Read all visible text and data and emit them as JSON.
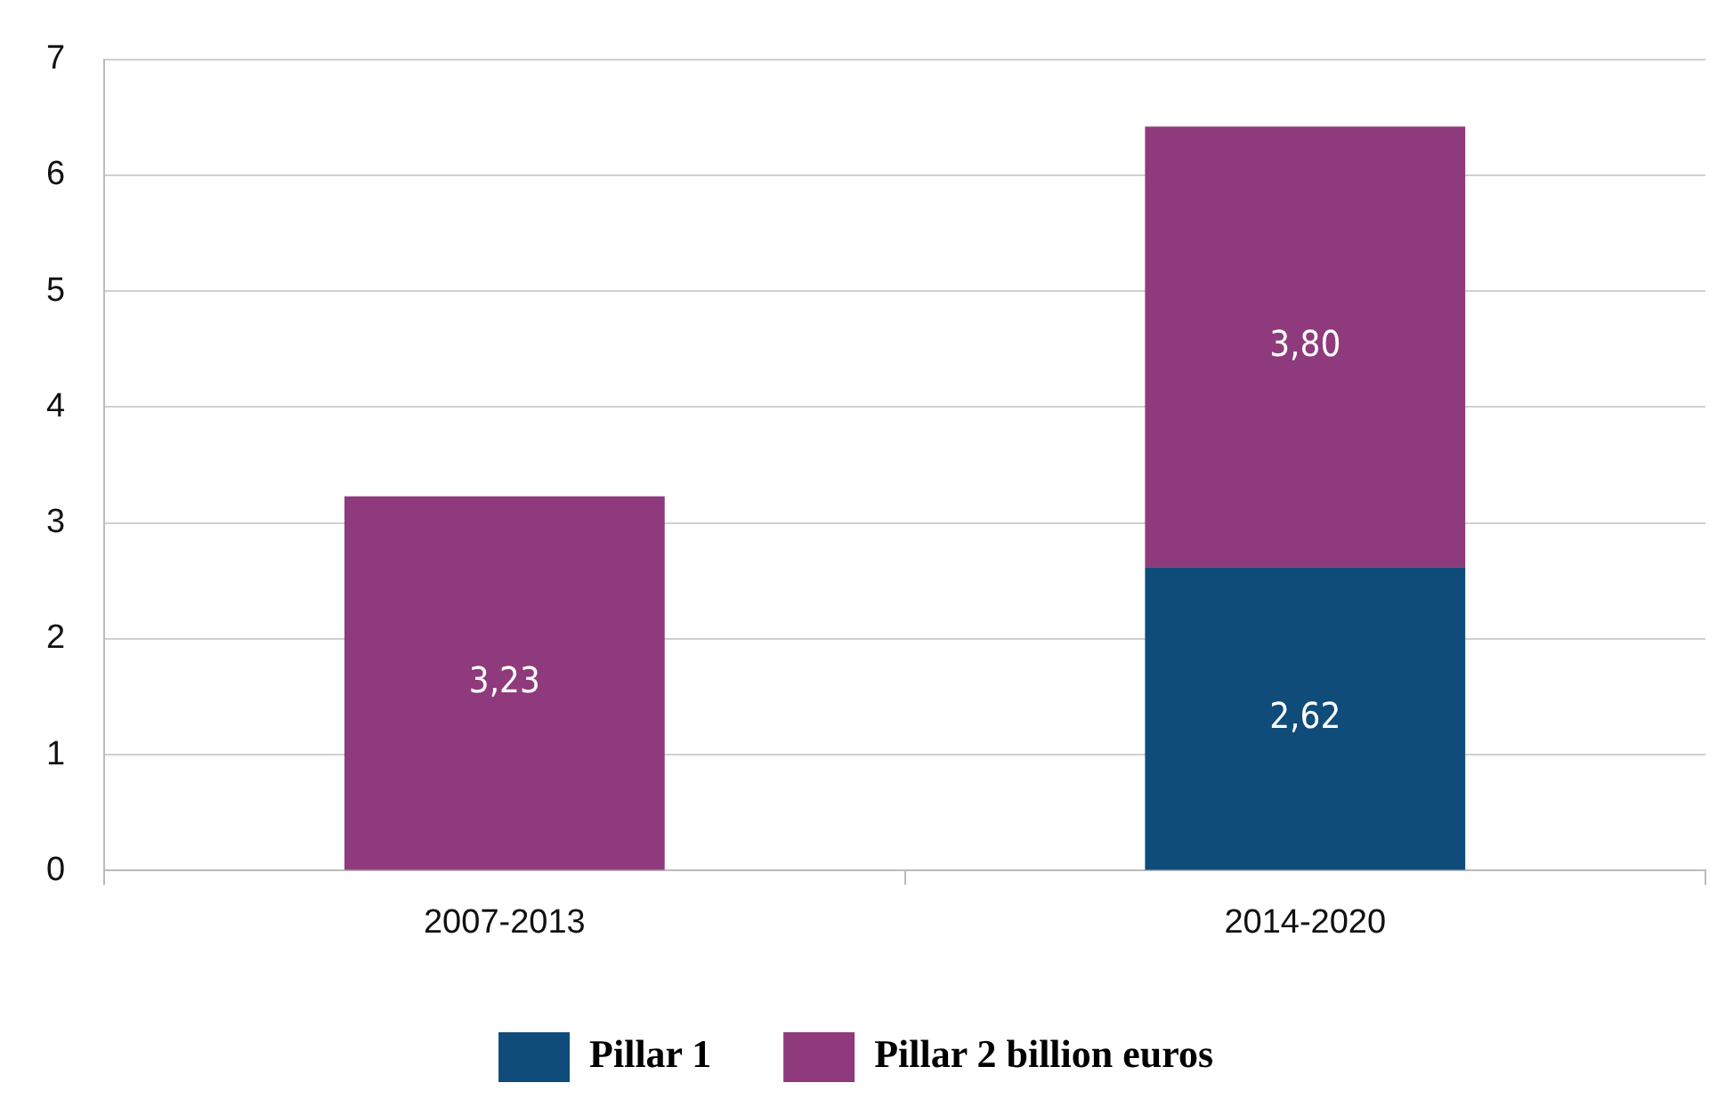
{
  "chart_data": {
    "type": "bar",
    "stacked": true,
    "categories": [
      "2007-2013",
      "2014-2020"
    ],
    "series": [
      {
        "name": "Pillar 1",
        "color": "#0f4c7a",
        "values": [
          null,
          2.62
        ],
        "value_labels": [
          null,
          "2,62"
        ]
      },
      {
        "name": "Pillar 2 billion euros",
        "color": "#8e3a7c",
        "values": [
          3.23,
          3.8
        ],
        "value_labels": [
          "3,23",
          "3,80"
        ]
      }
    ],
    "ylim": [
      0,
      7
    ],
    "yticks": [
      0,
      1,
      2,
      3,
      4,
      5,
      6,
      7
    ],
    "grid": "y",
    "legend": "bottom"
  }
}
